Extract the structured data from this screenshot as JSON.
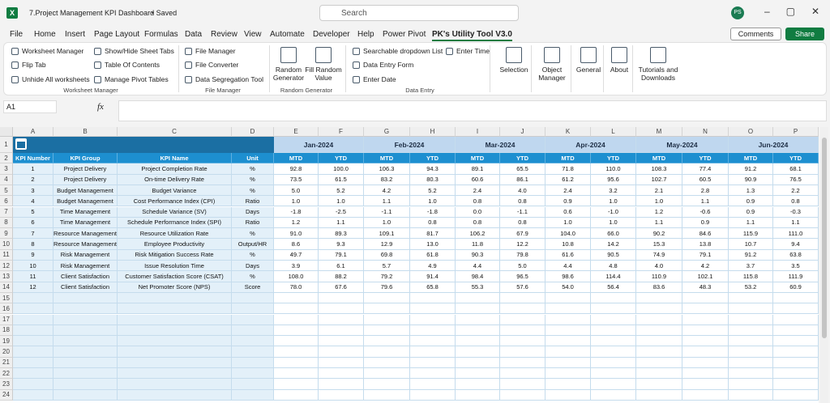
{
  "title_bar": {
    "file_name": "7.Project Management KPI Dashboard",
    "status": "• Saved",
    "search": "Search",
    "user": "PS"
  },
  "menu": {
    "tabs": [
      "File",
      "Home",
      "Insert",
      "Page Layout",
      "Formulas",
      "Data",
      "Review",
      "View",
      "Automate",
      "Developer",
      "Help",
      "Power Pivot",
      "PK's Utility Tool V3.0"
    ],
    "comments": "Comments",
    "share": "Share"
  },
  "ribbon": {
    "groups": [
      {
        "label": "Worksheet Manager",
        "items": [
          "Worksheet Manager",
          "Flip Tab",
          "Unhide All worksheets",
          "Show/Hide Sheet Tabs",
          "Table Of Contents",
          "Manage Pivot Tables"
        ]
      },
      {
        "label": "File Manager",
        "items": [
          "File Manager",
          "File Converter",
          "Data Segregation Tool"
        ]
      },
      {
        "label": "Random Generator",
        "items": [
          "Random Generator",
          "Fill Random Value"
        ]
      },
      {
        "label": "Data Entry",
        "items": [
          "Searchable dropdown List",
          "Data Entry Form",
          "Enter Date",
          "Enter Time"
        ]
      }
    ],
    "buttons": [
      "Selection",
      "Object Manager",
      "General",
      "About",
      "Tutorials and Downloads"
    ]
  },
  "formula_bar": {
    "name_box": "A1",
    "fx": "fx"
  },
  "sheet": {
    "columns": [
      "A",
      "B",
      "C",
      "D",
      "E",
      "F",
      "G",
      "H",
      "I",
      "J",
      "K",
      "L",
      "M",
      "N",
      "O",
      "P"
    ],
    "row_numbers": [
      1,
      2,
      3,
      4,
      5,
      6,
      7,
      8,
      9,
      10,
      11,
      12,
      13,
      14,
      15,
      16,
      17,
      18,
      19,
      20,
      21,
      22,
      23,
      24
    ],
    "months": [
      "Jan-2024",
      "Feb-2024",
      "Mar-2024",
      "Apr-2024",
      "May-2024",
      "Jun-2024"
    ],
    "header": [
      "KPI Number",
      "KPI Group",
      "KPI Name",
      "Unit"
    ],
    "period_labels": [
      "MTD",
      "YTD"
    ],
    "kpis": [
      {
        "number": 1,
        "group": "Project Delivery",
        "name": "Project Completion Rate",
        "unit": "%",
        "values": [
          "92.8",
          "100.0",
          "106.3",
          "94.3",
          "89.1",
          "65.5",
          "71.8",
          "110.0",
          "108.3",
          "77.4",
          "91.2",
          "68.1"
        ]
      },
      {
        "number": 2,
        "group": "Project Delivery",
        "name": "On-time Delivery Rate",
        "unit": "%",
        "values": [
          "73.5",
          "61.5",
          "83.2",
          "80.3",
          "60.6",
          "86.1",
          "61.2",
          "95.6",
          "102.7",
          "60.5",
          "90.9",
          "76.5"
        ]
      },
      {
        "number": 3,
        "group": "Budget Management",
        "name": "Budget Variance",
        "unit": "%",
        "values": [
          "5.0",
          "5.2",
          "4.2",
          "5.2",
          "2.4",
          "4.0",
          "2.4",
          "3.2",
          "2.1",
          "2.8",
          "1.3",
          "2.2"
        ]
      },
      {
        "number": 4,
        "group": "Budget Management",
        "name": "Cost Performance Index (CPI)",
        "unit": "Ratio",
        "values": [
          "1.0",
          "1.0",
          "1.1",
          "1.0",
          "0.8",
          "0.8",
          "0.9",
          "1.0",
          "1.0",
          "1.1",
          "0.9",
          "0.8"
        ]
      },
      {
        "number": 5,
        "group": "Time Management",
        "name": "Schedule Variance (SV)",
        "unit": "Days",
        "values": [
          "-1.8",
          "-2.5",
          "-1.1",
          "-1.8",
          "0.0",
          "-1.1",
          "0.6",
          "-1.0",
          "1.2",
          "-0.6",
          "0.9",
          "-0.3"
        ]
      },
      {
        "number": 6,
        "group": "Time Management",
        "name": "Schedule Performance Index (SPI)",
        "unit": "Ratio",
        "values": [
          "1.2",
          "1.1",
          "1.0",
          "0.8",
          "0.8",
          "0.8",
          "1.0",
          "1.0",
          "1.1",
          "0.9",
          "1.1",
          "1.1"
        ]
      },
      {
        "number": 7,
        "group": "Resource Management",
        "name": "Resource Utilization Rate",
        "unit": "%",
        "values": [
          "91.0",
          "89.3",
          "109.1",
          "81.7",
          "106.2",
          "67.9",
          "104.0",
          "66.0",
          "90.2",
          "84.6",
          "115.9",
          "111.0"
        ]
      },
      {
        "number": 8,
        "group": "Resource Management",
        "name": "Employee Productivity",
        "unit": "Output/HR",
        "values": [
          "8.6",
          "9.3",
          "12.9",
          "13.0",
          "11.8",
          "12.2",
          "10.8",
          "14.2",
          "15.3",
          "13.8",
          "10.7",
          "9.4"
        ]
      },
      {
        "number": 9,
        "group": "Risk Management",
        "name": "Risk Mitigation Success Rate",
        "unit": "%",
        "values": [
          "49.7",
          "79.1",
          "69.8",
          "61.8",
          "90.3",
          "79.8",
          "61.6",
          "90.5",
          "74.9",
          "79.1",
          "91.2",
          "63.8"
        ]
      },
      {
        "number": 10,
        "group": "Risk Management",
        "name": "Issue Resolution Time",
        "unit": "Days",
        "values": [
          "3.9",
          "6.1",
          "5.7",
          "4.9",
          "4.4",
          "5.0",
          "4.4",
          "4.8",
          "4.0",
          "4.2",
          "3.7",
          "3.5"
        ]
      },
      {
        "number": 11,
        "group": "Client Satisfaction",
        "name": "Customer Satisfaction Score (CSAT)",
        "unit": "%",
        "values": [
          "108.0",
          "88.2",
          "79.2",
          "91.4",
          "98.4",
          "96.5",
          "98.6",
          "114.4",
          "110.9",
          "102.1",
          "115.8",
          "111.9"
        ]
      },
      {
        "number": 12,
        "group": "Client Satisfaction",
        "name": "Net Promoter Score (NPS)",
        "unit": "Score",
        "values": [
          "78.0",
          "67.6",
          "79.6",
          "65.8",
          "55.3",
          "57.6",
          "54.0",
          "56.4",
          "83.6",
          "48.3",
          "53.2",
          "60.9"
        ]
      }
    ]
  }
}
